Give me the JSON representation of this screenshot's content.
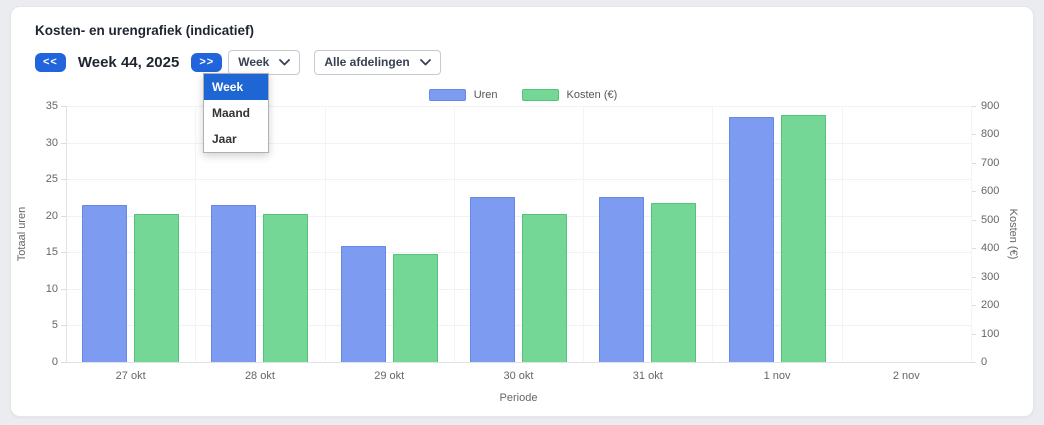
{
  "colors": {
    "primary_button": "#2264dc",
    "menu_highlight": "#1e66d4",
    "uren_fill": "#7d9bf0",
    "uren_border": "#6787e8",
    "kosten_fill": "#75d795",
    "kosten_border": "#53c37c"
  },
  "header": {
    "title": "Kosten- en urengrafiek (indicatief)"
  },
  "toolbar": {
    "prev_label": "<<",
    "next_label": ">>",
    "period_label": "Week 44, 2025",
    "period_select": {
      "value": "Week",
      "open": true,
      "options": [
        "Week",
        "Maand",
        "Jaar"
      ],
      "highlighted": "Week"
    },
    "department_select": {
      "value": "Alle afdelingen"
    }
  },
  "chart_data": {
    "type": "bar",
    "categories": [
      "27 okt",
      "28 okt",
      "29 okt",
      "30 okt",
      "31 okt",
      "1 nov",
      "2 nov"
    ],
    "series": [
      {
        "name": "Uren",
        "axis": "left",
        "values": [
          21.4,
          21.4,
          15.9,
          22.5,
          22.5,
          33.5,
          0
        ]
      },
      {
        "name": "Kosten (€)",
        "axis": "right",
        "values": [
          520,
          520,
          380,
          520,
          560,
          870,
          0
        ]
      }
    ],
    "xlabel": "Periode",
    "left_axis": {
      "label": "Totaal uren",
      "min": 0,
      "max": 35,
      "step": 5
    },
    "right_axis": {
      "label": "Kosten (€)",
      "min": 0,
      "max": 900,
      "step": 100
    },
    "grid": true,
    "legend_position": "top",
    "legend": [
      {
        "label": "Uren"
      },
      {
        "label": "Kosten (€)"
      }
    ]
  }
}
